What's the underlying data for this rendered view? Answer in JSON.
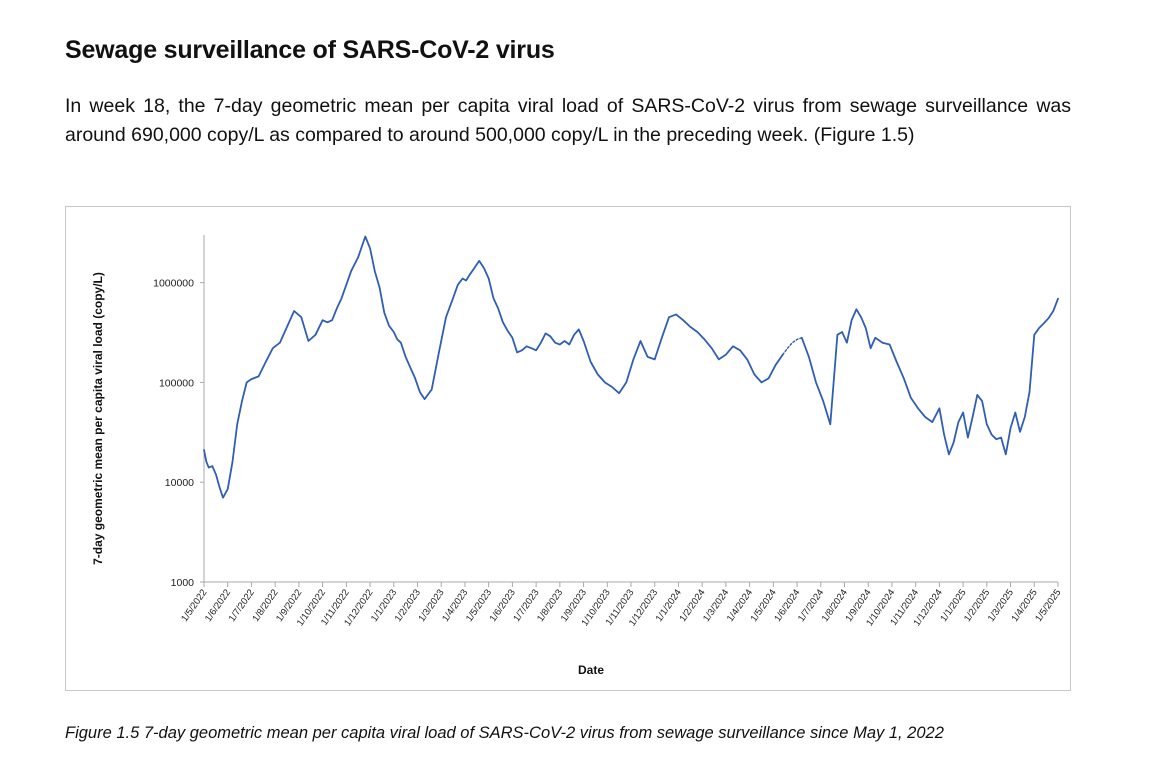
{
  "heading": "Sewage surveillance of SARS-CoV-2 virus",
  "paragraph": "In week 18, the 7-day geometric mean per capita viral load of SARS-CoV-2 virus from sewage surveillance was around 690,000 copy/L as compared to around 500,000 copy/L in the preceding week. (Figure 1.5)",
  "caption": "Figure 1.5 7-day geometric mean per capita viral load of SARS-CoV-2 virus from sewage surveillance since May 1, 2022",
  "chart_data": {
    "type": "line",
    "title": "",
    "xlabel": "Date",
    "ylabel": "7-day geometric mean per capita viral load (copy/L)",
    "y_scale": "log",
    "ylim": [
      1000,
      3000000
    ],
    "y_ticks": [
      1000,
      10000,
      100000,
      1000000
    ],
    "y_tick_labels": [
      "1000",
      "10000",
      "100000",
      "1000000"
    ],
    "x_tick_labels": [
      "1/5/2022",
      "1/6/2022",
      "1/7/2022",
      "1/8/2022",
      "1/9/2022",
      "1/10/2022",
      "1/11/2022",
      "1/12/2022",
      "1/1/2023",
      "1/2/2023",
      "1/3/2023",
      "1/4/2023",
      "1/5/2023",
      "1/6/2023",
      "1/7/2023",
      "1/8/2023",
      "1/9/2023",
      "1/10/2023",
      "1/11/2023",
      "1/12/2023",
      "1/1/2024",
      "1/2/2024",
      "1/3/2024",
      "1/4/2024",
      "1/5/2024",
      "1/6/2024",
      "1/7/2024",
      "1/8/2024",
      "1/9/2024",
      "1/10/2024",
      "1/11/2024",
      "1/12/2024",
      "1/1/2025",
      "1/2/2025",
      "1/3/2025",
      "1/4/2025",
      "1/5/2025"
    ],
    "grid": false,
    "line_color": "#2e5eb5",
    "series": [
      {
        "x": [
          0,
          0.1,
          0.2,
          0.35,
          0.5,
          0.65,
          0.8,
          1.0,
          1.2,
          1.4,
          1.6,
          1.8,
          2.0,
          2.3,
          2.6,
          2.9,
          3.2,
          3.5,
          3.8,
          4.1,
          4.4,
          4.7,
          5.0,
          5.2,
          5.4,
          5.6,
          5.8,
          6.0,
          6.2,
          6.5,
          6.8,
          7.0,
          7.2,
          7.4,
          7.6,
          7.8,
          8.0,
          8.15,
          8.3,
          8.5,
          8.7,
          8.9,
          9.1,
          9.3,
          9.6,
          9.9,
          10.2,
          10.5,
          10.7,
          10.9,
          11.05,
          11.2,
          11.4,
          11.6,
          11.8,
          12.0,
          12.2,
          12.4,
          12.6,
          12.8,
          13.0,
          13.2,
          13.4,
          13.6,
          13.8,
          14.0,
          14.2,
          14.4,
          14.6,
          14.8,
          15.0,
          15.2,
          15.4,
          15.6,
          15.8,
          16.0,
          16.3,
          16.6,
          16.9,
          17.2,
          17.5,
          17.8,
          18.1,
          18.4,
          18.7,
          19.0,
          19.3,
          19.6,
          19.9,
          20.2,
          20.5,
          20.8,
          21.1,
          21.4,
          21.7,
          22.0,
          22.3,
          22.6,
          22.9,
          23.2,
          23.5,
          23.8,
          24.1,
          24.4
        ],
        "y": [
          21000,
          16000,
          14000,
          14500,
          12000,
          9000,
          7000,
          8500,
          16000,
          38000,
          65000,
          100000,
          108000,
          115000,
          160000,
          220000,
          250000,
          360000,
          520000,
          450000,
          260000,
          300000,
          420000,
          400000,
          420000,
          550000,
          700000,
          950000,
          1300000,
          1800000,
          2900000,
          2200000,
          1300000,
          900000,
          500000,
          370000,
          320000,
          270000,
          250000,
          180000,
          140000,
          110000,
          80000,
          68000,
          85000,
          200000,
          450000,
          700000,
          950000,
          1100000,
          1050000,
          1200000,
          1400000,
          1650000,
          1400000,
          1100000,
          700000,
          550000,
          400000,
          330000,
          280000,
          200000,
          210000,
          230000,
          220000,
          210000,
          250000,
          310000,
          290000,
          250000,
          240000,
          260000,
          240000,
          300000,
          340000,
          260000,
          160000,
          120000,
          100000,
          90000,
          78000,
          100000,
          170000,
          260000,
          180000,
          170000,
          280000,
          450000,
          480000,
          420000,
          360000,
          320000,
          270000,
          220000,
          170000,
          190000,
          230000,
          210000,
          170000,
          120000,
          100000,
          110000,
          150000,
          190000
        ]
      },
      {
        "x": [
          24.4,
          24.6,
          24.8,
          25.0,
          25.2
        ],
        "y": [
          190000,
          220000,
          250000,
          270000,
          280000
        ]
      },
      {
        "x": [
          25.2,
          25.5,
          25.8,
          26.1,
          26.4,
          26.7,
          26.9,
          27.1,
          27.3,
          27.5,
          27.7,
          27.9,
          28.1,
          28.3,
          28.6,
          28.9,
          29.2,
          29.5,
          29.8,
          30.1,
          30.4,
          30.7,
          31.0,
          31.2,
          31.4,
          31.6,
          31.8,
          32.0,
          32.2,
          32.4,
          32.6,
          32.8,
          33.0,
          33.2,
          33.4,
          33.6,
          33.8,
          34.0,
          34.2,
          34.4,
          34.6,
          34.8,
          35.0,
          35.2,
          35.4,
          35.6,
          35.8,
          36.0
        ],
        "y": [
          280000,
          180000,
          100000,
          65000,
          38000,
          300000,
          320000,
          250000,
          420000,
          540000,
          450000,
          350000,
          220000,
          280000,
          250000,
          240000,
          160000,
          110000,
          70000,
          55000,
          45000,
          40000,
          55000,
          30000,
          19000,
          25000,
          40000,
          50000,
          28000,
          45000,
          75000,
          65000,
          38000,
          30000,
          27000,
          28000,
          19000,
          35000,
          50000,
          32000,
          45000,
          80000,
          300000,
          350000,
          390000,
          440000,
          520000,
          690000
        ]
      }
    ]
  }
}
